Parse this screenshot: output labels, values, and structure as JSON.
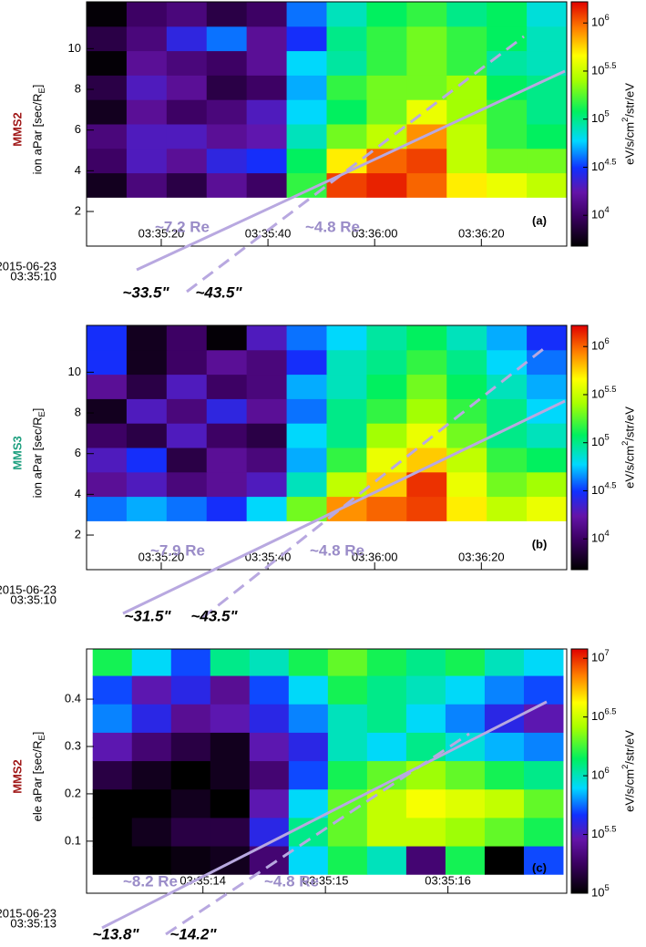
{
  "chart_data": [
    {
      "type": "heatmap",
      "probe": "MMS2",
      "probe_color": "#a01818",
      "ylabel": "ion  aPar [sec/R_E]",
      "panel_label": "(a)",
      "date_label": [
        "2015-06-23",
        "03:35:10"
      ],
      "xlim": [
        12906,
        12996
      ],
      "xticks": [
        {
          "value": 12920,
          "label": "03:35:20"
        },
        {
          "value": 12940,
          "label": "03:35:40"
        },
        {
          "value": 12960,
          "label": "03:36:00"
        },
        {
          "value": 12980,
          "label": "03:36:20"
        }
      ],
      "ylim": [
        0.3,
        12.3
      ],
      "yticks": [
        2,
        4,
        6,
        8,
        10
      ],
      "xbins": [
        12906,
        12913.5,
        12921,
        12928.5,
        12936,
        12943.5,
        12951,
        12958.5,
        12966,
        12973.5,
        12981,
        12988.5,
        12996
      ],
      "ybins": [
        2.7,
        3.9,
        5.1,
        6.3,
        7.5,
        8.7,
        9.9,
        11.1,
        12.3
      ],
      "z": [
        [
          6000.0,
          12000.0,
          8000.0,
          15000.0,
          10000.0,
          150000.0,
          1200000.0,
          1400000.0,
          1000000.0,
          500000.0,
          400000.0,
          300000.0
        ],
        [
          10000.0,
          20000.0,
          15000.0,
          25000.0,
          30000.0,
          120000.0,
          500000.0,
          1000000.0,
          1200000.0,
          300000.0,
          200000.0,
          200000.0
        ],
        [
          12000.0,
          20000.0,
          20000.0,
          15000.0,
          18000.0,
          80000.0,
          200000.0,
          300000.0,
          800000.0,
          300000.0,
          150000.0,
          120000.0
        ],
        [
          6000.0,
          15000.0,
          10000.0,
          12000.0,
          20000.0,
          60000.0,
          120000.0,
          200000.0,
          400000.0,
          250000.0,
          150000.0,
          100000.0
        ],
        [
          8000.0,
          20000.0,
          15000.0,
          8000.0,
          10000.0,
          50000.0,
          150000.0,
          200000.0,
          200000.0,
          250000.0,
          120000.0,
          100000.0
        ],
        [
          5000.0,
          15000.0,
          12000.0,
          10000.0,
          15000.0,
          60000.0,
          90000.0,
          150000.0,
          200000.0,
          150000.0,
          90000.0,
          80000.0
        ],
        [
          8000.0,
          12000.0,
          25000.0,
          40000.0,
          15000.0,
          30000.0,
          100000.0,
          150000.0,
          200000.0,
          150000.0,
          120000.0,
          80000.0
        ],
        [
          5000.0,
          10000.0,
          12000.0,
          8000.0,
          10000.0,
          40000.0,
          80000.0,
          120000.0,
          150000.0,
          100000.0,
          120000.0,
          70000.0
        ]
      ],
      "zlim": [
        4786,
        1660000
      ],
      "log_z": true,
      "zticks": [
        {
          "value": 10000,
          "label": "10^4"
        },
        {
          "value": 31623,
          "label": "10^4.5"
        },
        {
          "value": 100000,
          "label": "10^5"
        },
        {
          "value": 316228,
          "label": "10^5.5"
        },
        {
          "value": 1000000,
          "label": "10^6"
        }
      ],
      "zlabel": "eV/s/cm^2/str/eV",
      "annotations": [
        "~7.2 Re",
        "~4.8 Re",
        "~33.5\"",
        "~43.5\""
      ]
    },
    {
      "type": "heatmap",
      "probe": "MMS3",
      "probe_color": "#20a080",
      "ylabel": "ion  aPar [sec/R_E]",
      "panel_label": "(b)",
      "date_label": [
        "2015-06-23",
        "03:35:10"
      ],
      "xlim": [
        12906,
        12996
      ],
      "xticks": [
        {
          "value": 12920,
          "label": "03:35:20"
        },
        {
          "value": 12940,
          "label": "03:35:40"
        },
        {
          "value": 12960,
          "label": "03:36:00"
        },
        {
          "value": 12980,
          "label": "03:36:20"
        }
      ],
      "ylim": [
        0.3,
        12.3
      ],
      "yticks": [
        2,
        4,
        6,
        8,
        10
      ],
      "xbins": [
        12906,
        12913.5,
        12921,
        12928.5,
        12936,
        12943.5,
        12951,
        12958.5,
        12966,
        12973.5,
        12981,
        12988.5,
        12996
      ],
      "ybins": [
        2.7,
        3.9,
        5.1,
        6.3,
        7.5,
        8.7,
        9.9,
        11.1,
        12.3
      ],
      "z": [
        [
          40000.0,
          50000.0,
          40000.0,
          30000.0,
          60000.0,
          200000.0,
          800000.0,
          1000000.0,
          1200000.0,
          500000.0,
          300000.0,
          400000.0
        ],
        [
          15000.0,
          20000.0,
          12000.0,
          15000.0,
          20000.0,
          80000.0,
          300000.0,
          600000.0,
          1300000.0,
          400000.0,
          200000.0,
          250000.0
        ],
        [
          20000.0,
          30000.0,
          8000.0,
          15000.0,
          12000.0,
          50000.0,
          150000.0,
          400000.0,
          600000.0,
          300000.0,
          150000.0,
          120000.0
        ],
        [
          10000.0,
          8000.0,
          20000.0,
          10000.0,
          8000.0,
          60000.0,
          100000.0,
          250000.0,
          400000.0,
          200000.0,
          100000.0,
          80000.0
        ],
        [
          6000.0,
          20000.0,
          12000.0,
          25000.0,
          15000.0,
          40000.0,
          100000.0,
          150000.0,
          250000.0,
          150000.0,
          100000.0,
          60000.0
        ],
        [
          15000.0,
          8000.0,
          20000.0,
          10000.0,
          12000.0,
          50000.0,
          80000.0,
          120000.0,
          200000.0,
          120000.0,
          80000.0,
          50000.0
        ],
        [
          30000.0,
          6000.0,
          10000.0,
          15000.0,
          12000.0,
          30000.0,
          80000.0,
          100000.0,
          150000.0,
          100000.0,
          60000.0,
          40000.0
        ],
        [
          30000.0,
          6000.0,
          10000.0,
          5000.0,
          20000.0,
          40000.0,
          60000.0,
          90000.0,
          120000.0,
          80000.0,
          50000.0,
          30000.0
        ]
      ],
      "zlim": [
        4786,
        1660000
      ],
      "log_z": true,
      "zticks": [
        {
          "value": 10000,
          "label": "10^4"
        },
        {
          "value": 31623,
          "label": "10^4.5"
        },
        {
          "value": 100000,
          "label": "10^5"
        },
        {
          "value": 316228,
          "label": "10^5.5"
        },
        {
          "value": 1000000,
          "label": "10^6"
        }
      ],
      "zlabel": "eV/s/cm^2/str/eV",
      "annotations": [
        "~7.9 Re",
        "~4.8 Re",
        "~31.5\"",
        "~43.5\""
      ]
    },
    {
      "type": "heatmap",
      "probe": "MMS2",
      "probe_color": "#a01818",
      "ylabel": "ele  aPar [sec/R_E]",
      "panel_label": "(c)",
      "date_label": [
        "2015-06-23",
        "03:35:13"
      ],
      "xlim": [
        12913.05,
        12916.97
      ],
      "xticks": [
        {
          "value": 12914,
          "label": "03:35:14"
        },
        {
          "value": 12915,
          "label": "03:35:15"
        },
        {
          "value": 12916,
          "label": "03:35:16"
        }
      ],
      "ylim": [
        -0.01,
        0.506
      ],
      "yticks": [
        0.1,
        0.2,
        0.3,
        0.4
      ],
      "xbins": [
        12913.1,
        12913.42,
        12913.74,
        12914.06,
        12914.38,
        12914.7,
        12915.02,
        12915.34,
        12915.66,
        12915.98,
        12916.3,
        12916.62,
        12916.94
      ],
      "ybins": [
        0.03,
        0.09,
        0.15,
        0.21,
        0.27,
        0.33,
        0.39,
        0.45,
        0.506
      ],
      "z": [
        [
          100000.0,
          100000.0,
          110000.0,
          120000.0,
          200000.0,
          800000.0,
          1500000.0,
          1000000.0,
          200000.0,
          1500000.0,
          100000.0,
          500000.0
        ],
        [
          100000.0,
          120000.0,
          150000.0,
          150000.0,
          400000.0,
          1200000.0,
          2000000.0,
          3000000.0,
          3000000.0,
          2500000.0,
          2000000.0,
          1500000.0
        ],
        [
          100000.0,
          100000.0,
          120000.0,
          100000.0,
          300000.0,
          800000.0,
          2000000.0,
          3000000.0,
          4000000.0,
          3500000.0,
          3000000.0,
          2000000.0
        ],
        [
          150000.0,
          120000.0,
          100000.0,
          120000.0,
          200000.0,
          500000.0,
          1500000.0,
          2000000.0,
          2500000.0,
          2000000.0,
          1500000.0,
          1200000.0
        ],
        [
          300000.0,
          200000.0,
          150000.0,
          120000.0,
          300000.0,
          400000.0,
          1000000.0,
          800000.0,
          1200000.0,
          900000.0,
          700000.0,
          600000.0
        ],
        [
          600000.0,
          400000.0,
          250000.0,
          300000.0,
          400000.0,
          600000.0,
          1000000.0,
          1200000.0,
          800000.0,
          600000.0,
          400000.0,
          300000.0
        ],
        [
          500000.0,
          300000.0,
          400000.0,
          250000.0,
          500000.0,
          800000.0,
          1500000.0,
          1200000.0,
          1000000.0,
          800000.0,
          600000.0,
          500000.0
        ],
        [
          1500000.0,
          800000.0,
          500000.0,
          1200000.0,
          1000000.0,
          1500000.0,
          2000000.0,
          1500000.0,
          1200000.0,
          1500000.0,
          1000000.0,
          800000.0
        ]
      ],
      "zlim": [
        100000,
        12000000
      ],
      "log_z": true,
      "zticks": [
        {
          "value": 100000,
          "label": "10^5"
        },
        {
          "value": 316228,
          "label": "10^5.5"
        },
        {
          "value": 1000000,
          "label": "10^6"
        },
        {
          "value": 3162278,
          "label": "10^6.5"
        },
        {
          "value": 10000000,
          "label": "10^7"
        }
      ],
      "zlabel": "eV/s/cm^2/str/eV",
      "annotations": [
        "~8.2 Re",
        "~4.8 Re",
        "~13.8\"",
        "~14.2\""
      ]
    }
  ]
}
